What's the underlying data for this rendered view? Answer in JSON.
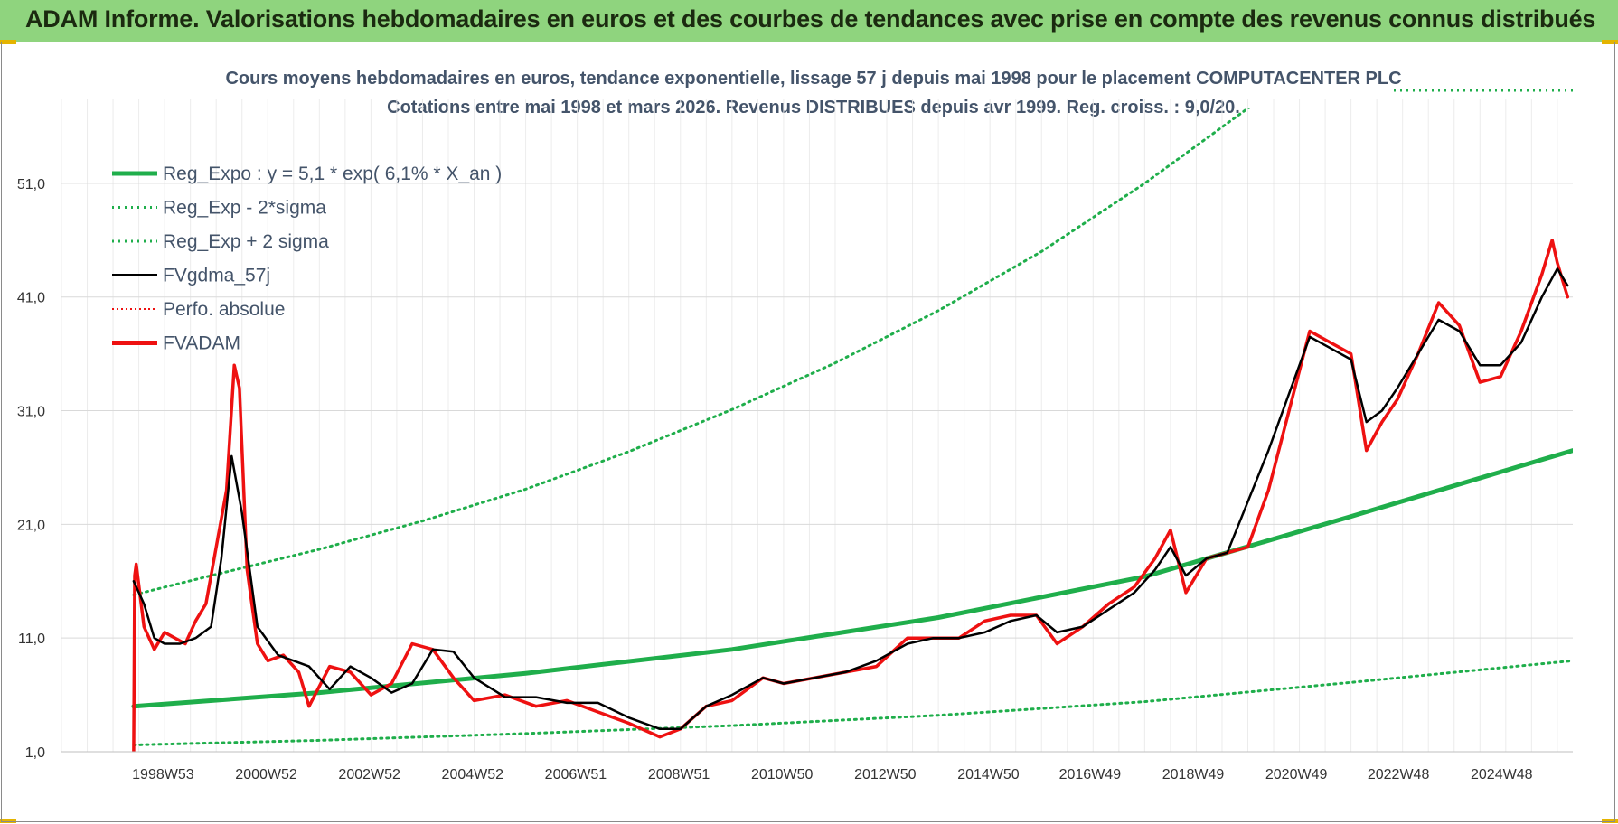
{
  "header": {
    "banner_title": "ADAM Informe. Valorisations hebdomadaires en euros et des courbes de tendances avec prise en compte des revenus connus distribués"
  },
  "colors": {
    "banner_bg": "#8fd47e",
    "reg_expo": "#1fae4b",
    "fvgdma": "#000000",
    "fvadam": "#ee1111",
    "perfo": "#ee1111",
    "grid": "#d9d9d9"
  },
  "chart_data": {
    "type": "line",
    "title": "Cours moyens hebdomadaires en euros, tendance exponentielle, lissage 57 j depuis mai 1998 pour le placement COMPUTACENTER PLC",
    "subtitle": "Cotations entre mai 1998 et mars 2026. Revenus DISTRIBUES depuis avr 1999. Reg. croiss. : 9,0/20.",
    "xlabel": "",
    "ylabel": "",
    "x_range": [
      1997.0,
      2026.3
    ],
    "ylim": [
      1,
      56
    ],
    "yticks": [
      1,
      11,
      21,
      31,
      41,
      51
    ],
    "ytick_labels": [
      "1,0",
      "11,0",
      "21,0",
      "31,0",
      "41,0",
      "51,0"
    ],
    "xticks": [
      1998.97,
      2000.97,
      2002.97,
      2004.97,
      2006.97,
      2008.97,
      2010.97,
      2012.97,
      2014.97,
      2016.94,
      2018.94,
      2020.94,
      2022.92,
      2024.92
    ],
    "xtick_labels": [
      "1998W53",
      "2000W52",
      "2002W52",
      "2004W52",
      "2006W51",
      "2008W51",
      "2010W50",
      "2012W50",
      "2014W50",
      "2016W49",
      "2018W49",
      "2020W49",
      "2022W48",
      "2024W48"
    ],
    "grid": true,
    "legend_position": "top-left",
    "legend": [
      {
        "label": "Reg_Expo : y = 5,1 * exp( 6,1% *  X_an )",
        "style": "solid-thick",
        "color": "#1fae4b"
      },
      {
        "label": "Reg_Exp - 2*sigma",
        "style": "dotted",
        "color": "#1fae4b"
      },
      {
        "label": "Reg_Exp + 2 sigma",
        "style": "dotted",
        "color": "#1fae4b"
      },
      {
        "label": "FVgdma_57j",
        "style": "solid",
        "color": "#000000"
      },
      {
        "label": "Perfo. absolue",
        "style": "dotted",
        "color": "#ee1111"
      },
      {
        "label": "FVADAM",
        "style": "solid-thick",
        "color": "#ee1111"
      }
    ],
    "series": [
      {
        "name": "Reg_Expo : y = 5,1 * exp( 6,1% *  X_an )",
        "x": [
          1998.4,
          2002,
          2006,
          2010,
          2014,
          2018,
          2022,
          2026.3
        ],
        "y": [
          5.0,
          6.2,
          7.9,
          10.0,
          12.8,
          16.4,
          21.7,
          27.5
        ]
      },
      {
        "name": "Reg_Exp - 2*sigma",
        "x": [
          1998.4,
          2002,
          2006,
          2010,
          2014,
          2018,
          2022,
          2026.3
        ],
        "y": [
          1.6,
          2.0,
          2.6,
          3.3,
          4.2,
          5.4,
          7.1,
          9.0
        ]
      },
      {
        "name": "Reg_Exp + 2 sigma",
        "x": [
          1998.4,
          2000,
          2002,
          2004,
          2006,
          2008,
          2010,
          2012,
          2014,
          2016,
          2018,
          2020,
          2021.8
        ],
        "y": [
          14.8,
          16.6,
          18.8,
          21.3,
          24.1,
          27.4,
          31.1,
          35.2,
          39.8,
          45.0,
          51.0,
          57.6,
          63.0
        ]
      },
      {
        "name": "FVgdma_57j",
        "x": [
          1998.4,
          1998.6,
          1998.8,
          1999.0,
          1999.3,
          1999.6,
          1999.9,
          2000.1,
          2000.3,
          2000.5,
          2000.8,
          2001.2,
          2001.5,
          2001.8,
          2002.2,
          2002.6,
          2003.0,
          2003.4,
          2003.8,
          2004.2,
          2004.6,
          2005.0,
          2005.6,
          2006.2,
          2006.8,
          2007.4,
          2008.0,
          2008.6,
          2009.0,
          2009.5,
          2010.0,
          2010.6,
          2011.0,
          2011.6,
          2012.2,
          2012.8,
          2013.4,
          2013.9,
          2014.4,
          2014.9,
          2015.4,
          2015.9,
          2016.3,
          2016.8,
          2017.3,
          2017.8,
          2018.2,
          2018.5,
          2018.8,
          2019.2,
          2019.6,
          2020.0,
          2020.4,
          2020.8,
          2021.2,
          2021.6,
          2022.0,
          2022.3,
          2022.6,
          2022.9,
          2023.3,
          2023.7,
          2024.1,
          2024.5,
          2024.9,
          2025.3,
          2025.7,
          2026.0,
          2026.2
        ],
        "y": [
          16.0,
          14.0,
          11.0,
          10.5,
          10.5,
          11.0,
          12.0,
          18.0,
          27.0,
          22.0,
          12.0,
          9.5,
          9.0,
          8.5,
          6.5,
          8.5,
          7.5,
          6.2,
          7.0,
          10.0,
          9.8,
          7.5,
          5.8,
          5.8,
          5.3,
          5.3,
          4.0,
          3.0,
          3.0,
          5.0,
          6.0,
          7.5,
          7.0,
          7.5,
          8.0,
          9.0,
          10.5,
          11.0,
          11.0,
          11.5,
          12.5,
          13.0,
          11.5,
          12.0,
          13.5,
          15.0,
          17.0,
          19.0,
          16.5,
          18.0,
          18.5,
          23.0,
          27.5,
          32.5,
          37.5,
          36.5,
          35.5,
          30.0,
          31.0,
          33.0,
          36.0,
          39.0,
          38.0,
          35.0,
          35.0,
          37.0,
          41.0,
          43.5,
          42.0
        ]
      },
      {
        "name": "FVADAM",
        "x": [
          1998.4,
          1998.42,
          1998.45,
          1998.6,
          1998.8,
          1999.0,
          1999.2,
          1999.4,
          1999.6,
          1999.8,
          2000.0,
          2000.2,
          2000.35,
          2000.45,
          2000.6,
          2000.8,
          2001.0,
          2001.3,
          2001.6,
          2001.8,
          2002.2,
          2002.6,
          2003.0,
          2003.4,
          2003.8,
          2004.2,
          2004.6,
          2005.0,
          2005.6,
          2006.2,
          2006.8,
          2007.4,
          2008.0,
          2008.6,
          2009.0,
          2009.5,
          2010.0,
          2010.6,
          2011.0,
          2011.6,
          2012.2,
          2012.8,
          2013.4,
          2013.9,
          2014.4,
          2014.9,
          2015.4,
          2015.9,
          2016.3,
          2016.8,
          2017.3,
          2017.8,
          2018.2,
          2018.5,
          2018.8,
          2019.2,
          2019.6,
          2020.0,
          2020.4,
          2020.8,
          2021.2,
          2021.6,
          2022.0,
          2022.3,
          2022.6,
          2022.9,
          2023.3,
          2023.7,
          2024.1,
          2024.5,
          2024.9,
          2025.3,
          2025.7,
          2025.9,
          2026.0,
          2026.2
        ],
        "y": [
          1.0,
          16.5,
          17.5,
          12.0,
          10.0,
          11.5,
          11.0,
          10.5,
          12.5,
          14.0,
          19.0,
          24.0,
          35.0,
          33.0,
          17.0,
          10.5,
          9.0,
          9.5,
          8.0,
          5.0,
          8.5,
          8.0,
          6.0,
          7.0,
          10.5,
          10.0,
          7.5,
          5.5,
          6.0,
          5.0,
          5.5,
          4.5,
          3.5,
          2.3,
          3.0,
          5.0,
          5.5,
          7.5,
          7.0,
          7.5,
          8.0,
          8.5,
          11.0,
          11.0,
          11.0,
          12.5,
          13.0,
          13.0,
          10.5,
          12.0,
          14.0,
          15.5,
          18.0,
          20.5,
          15.0,
          18.0,
          18.5,
          19.0,
          24.0,
          31.0,
          38.0,
          37.0,
          36.0,
          27.5,
          30.0,
          32.0,
          36.0,
          40.5,
          38.5,
          33.5,
          34.0,
          38.0,
          43.0,
          46.0,
          44.0,
          41.0
        ]
      }
    ]
  }
}
